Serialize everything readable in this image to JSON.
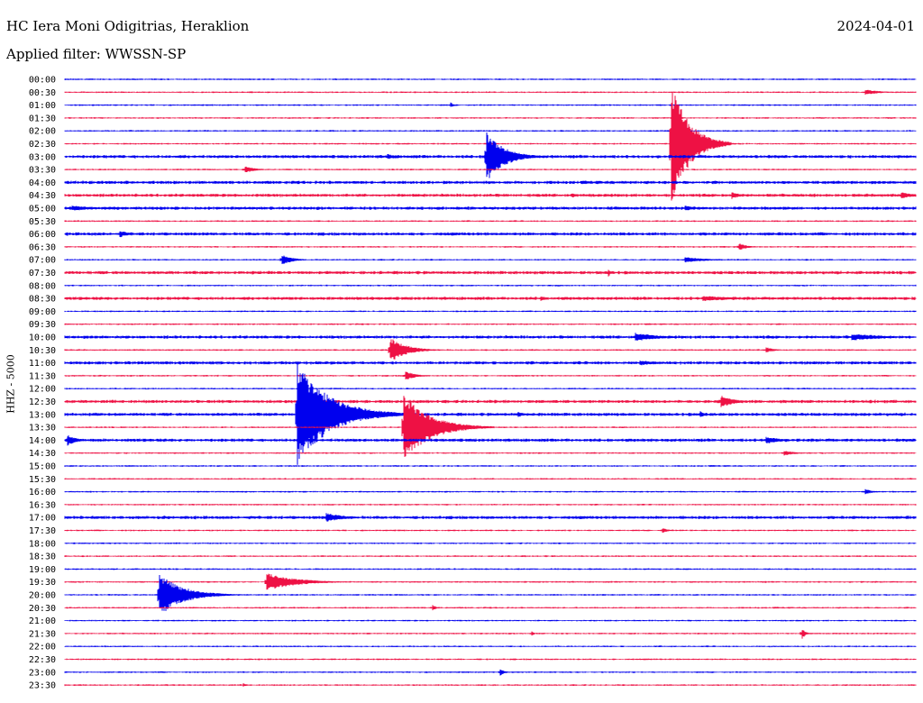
{
  "header": {
    "station": "HC Iera Moni Odigitrias, Heraklion",
    "date": "2024-04-01",
    "filter": "Applied filter: WWSSN-SP"
  },
  "axis": {
    "ylabel": "HHZ - 5000"
  },
  "chart_data": {
    "type": "line",
    "title": "HC Iera Moni Odigitrias, Heraklion",
    "subtitle": "Applied filter: WWSSN-SP",
    "ylabel": "HHZ - 5000",
    "trace_colors": [
      "#0000ee",
      "#ee1144"
    ],
    "rows": [
      "00:00",
      "00:30",
      "01:00",
      "01:30",
      "02:00",
      "02:30",
      "03:00",
      "03:30",
      "04:00",
      "04:30",
      "05:00",
      "05:30",
      "06:00",
      "06:30",
      "07:00",
      "07:30",
      "08:00",
      "08:30",
      "09:00",
      "09:30",
      "10:00",
      "10:30",
      "11:00",
      "11:30",
      "12:00",
      "12:30",
      "13:00",
      "13:30",
      "14:00",
      "14:30",
      "15:00",
      "15:30",
      "16:00",
      "16:30",
      "17:00",
      "17:30",
      "18:00",
      "18:30",
      "19:00",
      "19:30",
      "20:00",
      "20:30",
      "21:00",
      "21:30",
      "22:00",
      "22:30",
      "23:00",
      "23:30"
    ],
    "noise": [
      1,
      1,
      1,
      1,
      1,
      1,
      2,
      1,
      2,
      2,
      2,
      1,
      2,
      1,
      1,
      2,
      1,
      2,
      1,
      1,
      2,
      1,
      2,
      1,
      1,
      2,
      2,
      1,
      2,
      1,
      1,
      1,
      1,
      1,
      2,
      1,
      1,
      1,
      1,
      1,
      1,
      1,
      1,
      1,
      1,
      1,
      1,
      1
    ],
    "events": [
      {
        "row": 2,
        "x": 500,
        "amp": 3,
        "dur": 6
      },
      {
        "row": 5,
        "x": 745,
        "amp": 70,
        "dur": 30
      },
      {
        "row": 6,
        "x": 540,
        "amp": 28,
        "dur": 30
      },
      {
        "row": 6,
        "x": 430,
        "amp": 3,
        "dur": 20
      },
      {
        "row": 7,
        "x": 272,
        "amp": 4,
        "dur": 18
      },
      {
        "row": 1,
        "x": 960,
        "amp": 3,
        "dur": 28
      },
      {
        "row": 9,
        "x": 635,
        "amp": 3,
        "dur": 10
      },
      {
        "row": 9,
        "x": 812,
        "amp": 4,
        "dur": 16
      },
      {
        "row": 9,
        "x": 1000,
        "amp": 4,
        "dur": 20
      },
      {
        "row": 10,
        "x": 80,
        "amp": 3,
        "dur": 40
      },
      {
        "row": 10,
        "x": 760,
        "amp": 3,
        "dur": 20
      },
      {
        "row": 12,
        "x": 133,
        "amp": 4,
        "dur": 16
      },
      {
        "row": 13,
        "x": 820,
        "amp": 4,
        "dur": 14
      },
      {
        "row": 14,
        "x": 313,
        "amp": 6,
        "dur": 18
      },
      {
        "row": 14,
        "x": 760,
        "amp": 3,
        "dur": 40
      },
      {
        "row": 15,
        "x": 675,
        "amp": 5,
        "dur": 4
      },
      {
        "row": 17,
        "x": 600,
        "amp": 3,
        "dur": 8
      },
      {
        "row": 17,
        "x": 780,
        "amp": 3,
        "dur": 70
      },
      {
        "row": 20,
        "x": 705,
        "amp": 5,
        "dur": 40
      },
      {
        "row": 20,
        "x": 945,
        "amp": 4,
        "dur": 60
      },
      {
        "row": 21,
        "x": 433,
        "amp": 14,
        "dur": 28
      },
      {
        "row": 21,
        "x": 850,
        "amp": 3,
        "dur": 16
      },
      {
        "row": 22,
        "x": 710,
        "amp": 3,
        "dur": 30
      },
      {
        "row": 23,
        "x": 450,
        "amp": 5,
        "dur": 18
      },
      {
        "row": 25,
        "x": 800,
        "amp": 7,
        "dur": 22
      },
      {
        "row": 26,
        "x": 330,
        "amp": 58,
        "dur": 55
      },
      {
        "row": 26,
        "x": 575,
        "amp": 3,
        "dur": 14
      },
      {
        "row": 26,
        "x": 777,
        "amp": 4,
        "dur": 10
      },
      {
        "row": 27,
        "x": 448,
        "amp": 38,
        "dur": 45
      },
      {
        "row": 28,
        "x": 75,
        "amp": 6,
        "dur": 16
      },
      {
        "row": 28,
        "x": 850,
        "amp": 4,
        "dur": 30
      },
      {
        "row": 29,
        "x": 870,
        "amp": 3,
        "dur": 20
      },
      {
        "row": 32,
        "x": 960,
        "amp": 3,
        "dur": 14
      },
      {
        "row": 34,
        "x": 362,
        "amp": 5,
        "dur": 34
      },
      {
        "row": 35,
        "x": 735,
        "amp": 3,
        "dur": 10
      },
      {
        "row": 39,
        "x": 296,
        "amp": 10,
        "dur": 50
      },
      {
        "row": 40,
        "x": 177,
        "amp": 24,
        "dur": 40
      },
      {
        "row": 41,
        "x": 480,
        "amp": 3,
        "dur": 8
      },
      {
        "row": 43,
        "x": 890,
        "amp": 6,
        "dur": 6
      },
      {
        "row": 43,
        "x": 590,
        "amp": 3,
        "dur": 4
      },
      {
        "row": 46,
        "x": 555,
        "amp": 4,
        "dur": 8
      },
      {
        "row": 47,
        "x": 270,
        "amp": 2,
        "dur": 6
      }
    ]
  }
}
